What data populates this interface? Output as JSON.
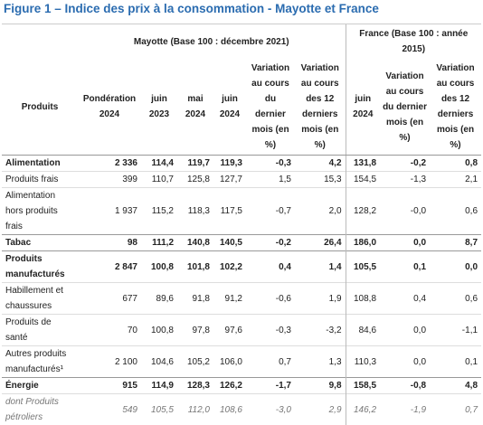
{
  "title": "Figure 1 – Indice des prix à la consommation - Mayotte et France",
  "table": {
    "group_headers": [
      "Mayotte (Base 100 : décembre 2021)",
      "France (Base 100 : année 2015)"
    ],
    "columns": [
      "Produits",
      "Pondération 2024",
      "juin 2023",
      "mai 2024",
      "juin 2024",
      "Variation au cours du dernier mois (en %)",
      "Variation au cours des 12 derniers mois (en %)",
      "juin 2024",
      "Variation au cours du dernier mois (en %)",
      "Variation au cours des 12 derniers mois (en %)"
    ],
    "rows": [
      [
        "Alimentation",
        "2 336",
        "114,4",
        "119,7",
        "119,3",
        "-0,3",
        "4,2",
        "131,8",
        "-0,2",
        "0,8"
      ],
      [
        "Produits frais",
        "399",
        "110,7",
        "125,8",
        "127,7",
        "1,5",
        "15,3",
        "154,5",
        "-1,3",
        "2,1"
      ],
      [
        "Alimentation hors produits frais",
        "1 937",
        "115,2",
        "118,3",
        "117,5",
        "-0,7",
        "2,0",
        "128,2",
        "-0,0",
        "0,6"
      ],
      [
        "Tabac",
        "98",
        "111,2",
        "140,8",
        "140,5",
        "-0,2",
        "26,4",
        "186,0",
        "0,0",
        "8,7"
      ],
      [
        "Produits manufacturés",
        "2 847",
        "100,8",
        "101,8",
        "102,2",
        "0,4",
        "1,4",
        "105,5",
        "0,1",
        "0,0"
      ],
      [
        "Habillement et chaussures",
        "677",
        "89,6",
        "91,8",
        "91,2",
        "-0,6",
        "1,9",
        "108,8",
        "0,4",
        "0,6"
      ],
      [
        "Produits de santé",
        "70",
        "100,8",
        "97,8",
        "97,6",
        "-0,3",
        "-3,2",
        "84,6",
        "0,0",
        "-1,1"
      ],
      [
        "Autres produits manufacturés¹",
        "2 100",
        "104,6",
        "105,2",
        "106,0",
        "0,7",
        "1,3",
        "110,3",
        "0,0",
        "0,1"
      ],
      [
        "Énergie",
        "915",
        "114,9",
        "128,3",
        "126,2",
        "-1,7",
        "9,8",
        "158,5",
        "-0,8",
        "4,8"
      ],
      [
        "dont Produits pétroliers",
        "549",
        "105,5",
        "112,0",
        "108,6",
        "-3,0",
        "2,9",
        "146,2",
        "-1,9",
        "0,7"
      ]
    ],
    "row_styles": [
      "bold",
      "normal",
      "normal",
      "bold",
      "bold",
      "normal",
      "normal",
      "normal",
      "bold",
      "italic"
    ]
  }
}
